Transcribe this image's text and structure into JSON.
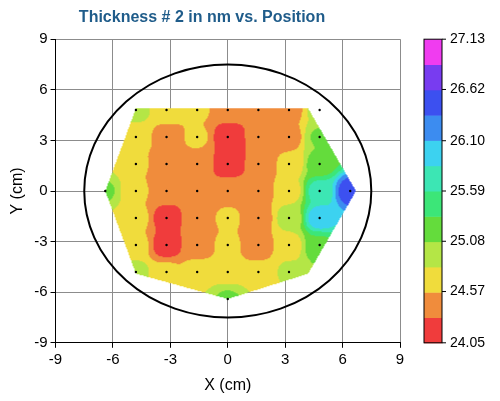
{
  "chart_data": {
    "type": "contour",
    "title": "Thickness # 2 in nm vs. Position",
    "x_label": "X (cm)",
    "y_label": "Y (cm)",
    "xlim": [
      -9,
      9
    ],
    "ylim": [
      -9,
      9
    ],
    "xticks": [
      -9,
      -6,
      -3,
      0,
      3,
      6,
      9
    ],
    "yticks": [
      -9,
      -6,
      -3,
      0,
      3,
      6,
      9
    ],
    "grid": true,
    "marker": "dot",
    "wafer_center": [
      0,
      0
    ],
    "wafer_radius": 7.5,
    "boundary": [
      [
        -4.8,
        4.9
      ],
      [
        4.2,
        4.9
      ],
      [
        6.7,
        0
      ],
      [
        4.2,
        -4.9
      ],
      [
        0,
        -6.4
      ],
      [
        -4.8,
        -4.9
      ],
      [
        -6.4,
        0
      ]
    ],
    "cells": {
      "x": [
        -6.4,
        -4.8,
        -3.2,
        -1.6,
        0,
        1.6,
        3.2,
        4.8,
        6.4
      ],
      "y": [
        4.8,
        3.2,
        1.6,
        0,
        -1.6,
        -3.2,
        -4.8,
        -6.4
      ],
      "values": [
        [
          null,
          24.9,
          24.7,
          24.6,
          24.4,
          24.4,
          24.45,
          24.9,
          null
        ],
        [
          null,
          24.7,
          24.45,
          24.6,
          24.15,
          24.35,
          24.45,
          25.1,
          null
        ],
        [
          null,
          24.6,
          24.4,
          24.5,
          24.15,
          24.35,
          24.6,
          25.2,
          null
        ],
        [
          25.1,
          24.6,
          24.4,
          24.35,
          24.45,
          24.4,
          24.7,
          25.7,
          26.5
        ],
        [
          null,
          24.65,
          24.2,
          24.4,
          24.6,
          24.4,
          24.9,
          26.0,
          null
        ],
        [
          null,
          24.65,
          24.15,
          24.45,
          24.6,
          24.4,
          24.7,
          25.3,
          null
        ],
        [
          null,
          24.9,
          24.6,
          24.65,
          24.7,
          24.6,
          24.85,
          null,
          null
        ],
        [
          null,
          null,
          null,
          null,
          25.1,
          null,
          null,
          null,
          null
        ]
      ]
    },
    "colorbar": {
      "range": [
        24.05,
        27.13
      ],
      "ticks": [
        24.05,
        24.57,
        25.08,
        25.59,
        {
          "value": 26.1,
          "label": "26.10"
        },
        26.62,
        27.13
      ],
      "colors": [
        "#f03c3c",
        "#f08c3c",
        "#f0dc3c",
        "#b4e646",
        "#64dc3c",
        "#3ce678",
        "#3ce6b4",
        "#3cd2f0",
        "#3c8cf0",
        "#3c50f0",
        "#783cf0",
        "#f03cf0"
      ]
    }
  }
}
